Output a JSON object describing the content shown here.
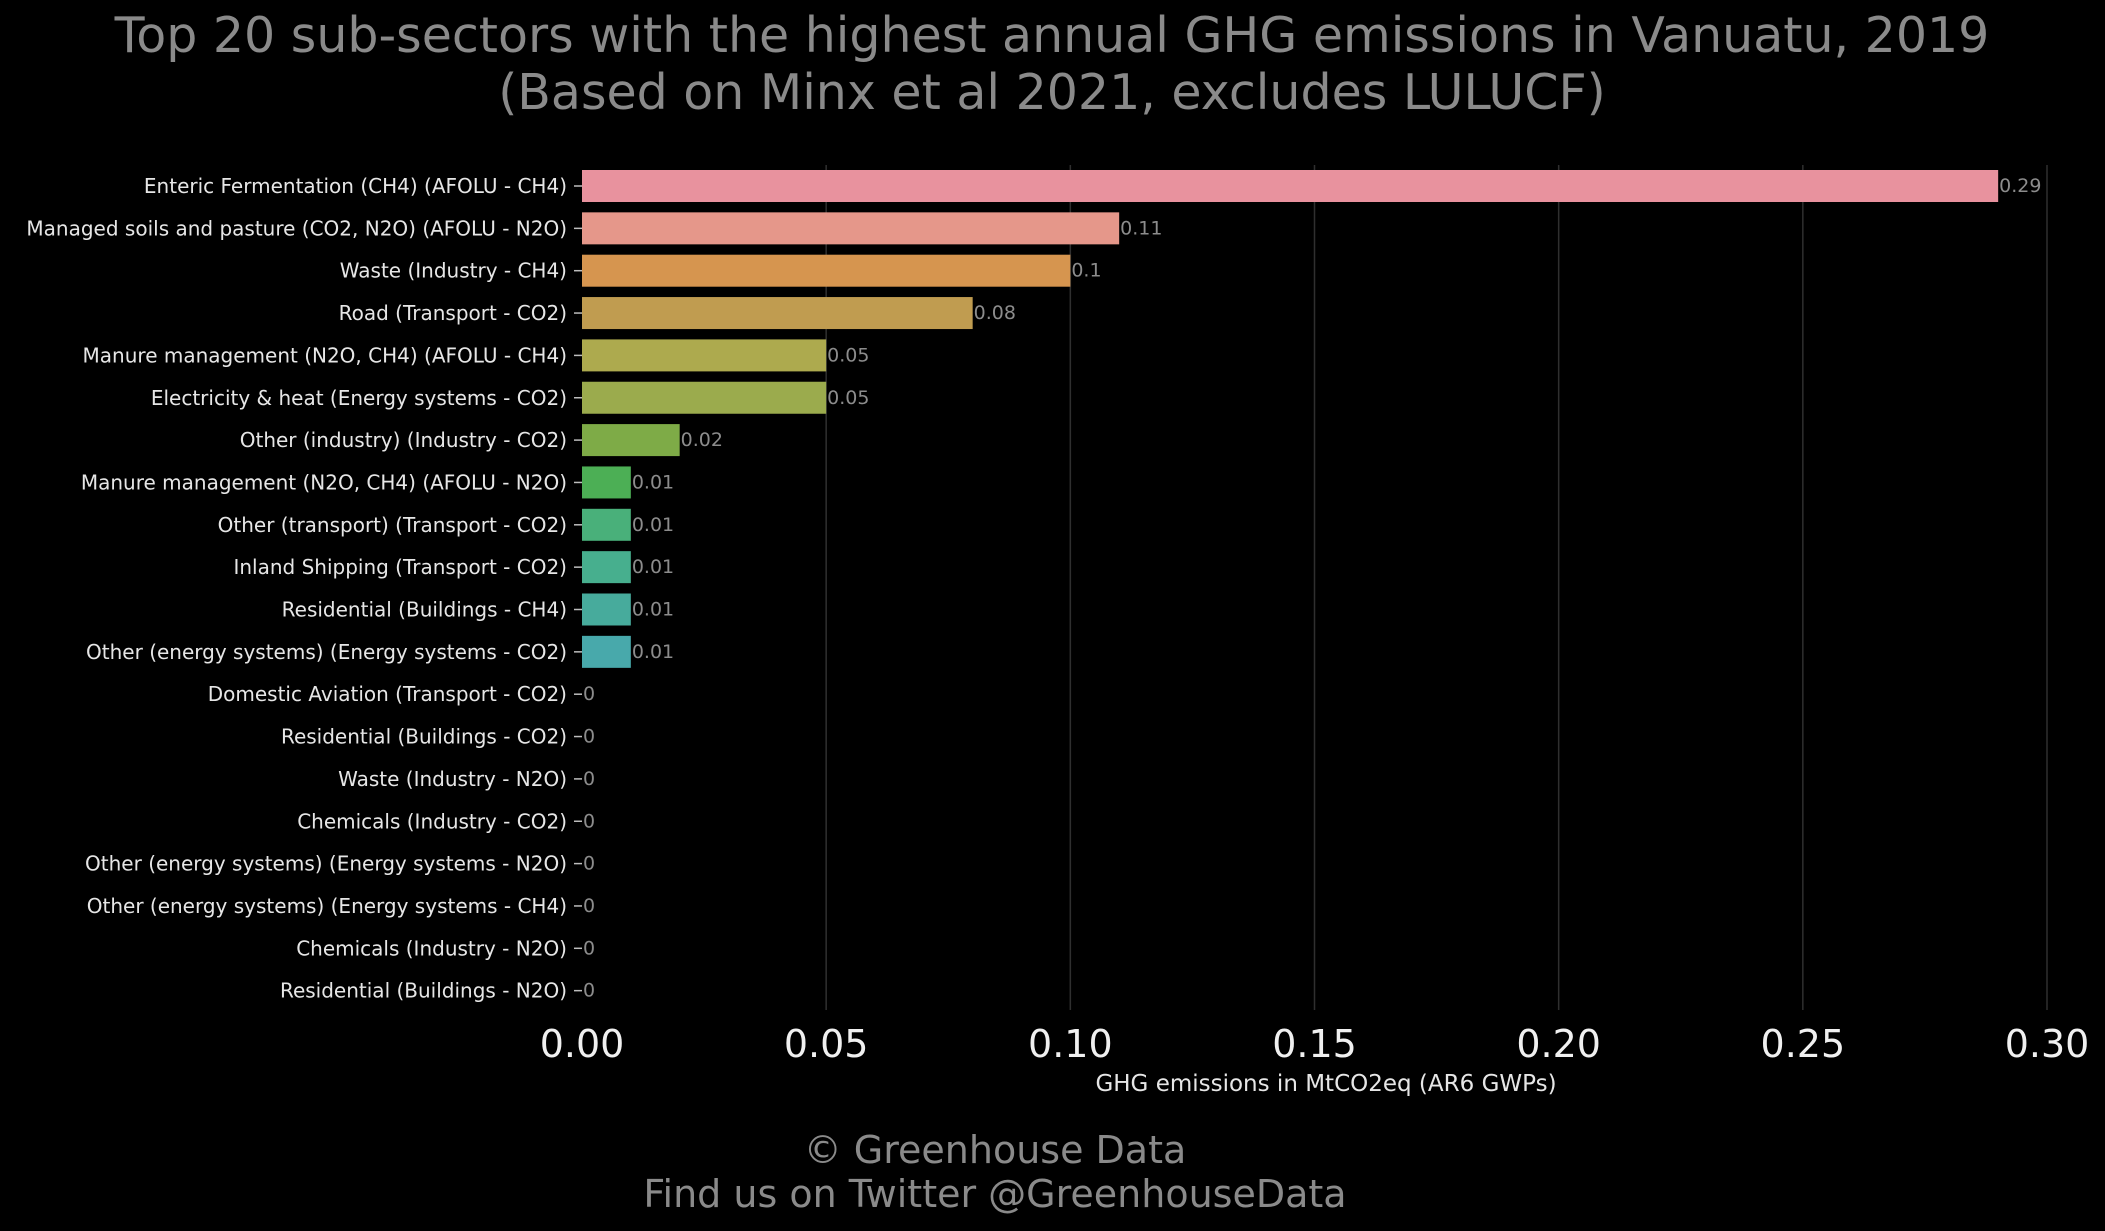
{
  "chart_data": {
    "type": "bar",
    "orientation": "horizontal",
    "title": [
      "Top 20 sub-sectors with the highest annual GHG emissions in Vanuatu, 2019",
      "(Based on Minx et al 2021, excludes LULUCF)"
    ],
    "xlabel": "GHG emissions in MtCO2eq (AR6 GWPs)",
    "ylabel": "",
    "xlim": [
      0,
      0.3
    ],
    "x_ticks": [
      0,
      0.05,
      0.1,
      0.15,
      0.2,
      0.25,
      0.3
    ],
    "x_tick_labels": [
      "0.00",
      "0.05",
      "0.10",
      "0.15",
      "0.20",
      "0.25",
      "0.30"
    ],
    "grid": "vertical",
    "categories": [
      "Enteric Fermentation (CH4) (AFOLU - CH4)",
      "Managed soils and pasture (CO2, N2O) (AFOLU - N2O)",
      "Waste (Industry - CH4)",
      "Road (Transport - CO2)",
      "Manure management (N2O, CH4) (AFOLU - CH4)",
      "Electricity & heat (Energy systems - CO2)",
      "Other (industry) (Industry - CO2)",
      "Manure management (N2O, CH4) (AFOLU - N2O)",
      "Other (transport) (Transport - CO2)",
      "Inland Shipping (Transport - CO2)",
      "Residential (Buildings - CH4)",
      "Other (energy systems) (Energy systems - CO2)",
      "Domestic Aviation (Transport - CO2)",
      "Residential (Buildings - CO2)",
      "Waste (Industry - N2O)",
      "Chemicals (Industry - CO2)",
      "Other (energy systems) (Energy systems - N2O)",
      "Other (energy systems) (Energy systems - CH4)",
      "Chemicals (Industry - N2O)",
      "Residential (Buildings - N2O)"
    ],
    "values": [
      0.29,
      0.11,
      0.1,
      0.08,
      0.05,
      0.05,
      0.02,
      0.01,
      0.01,
      0.01,
      0.01,
      0.01,
      0,
      0,
      0,
      0,
      0,
      0,
      0,
      0
    ],
    "value_labels": [
      "0.29",
      "0.11",
      "0.1",
      "0.08",
      "0.05",
      "0.05",
      "0.02",
      "0.01",
      "0.01",
      "0.01",
      "0.01",
      "0.01",
      "0",
      "0",
      "0",
      "0",
      "0",
      "0",
      "0",
      "0"
    ],
    "colors": [
      "#e8929e",
      "#e5978a",
      "#d6954f",
      "#c09c50",
      "#adaa4e",
      "#9bab4d",
      "#7eab47",
      "#4caf55",
      "#49b07a",
      "#47af8e",
      "#47ab9c",
      "#48a9ab",
      "#4aa6bc",
      "#4ea2ca",
      "#5d9bd6",
      "#7c93df",
      "#9a8ae1",
      "#b884de",
      "#d27ed3",
      "#e17ec1"
    ],
    "colors_note_background": "#000000"
  },
  "footer": {
    "line1": "© Greenhouse Data",
    "line2": "Find us on Twitter @GreenhouseData"
  }
}
